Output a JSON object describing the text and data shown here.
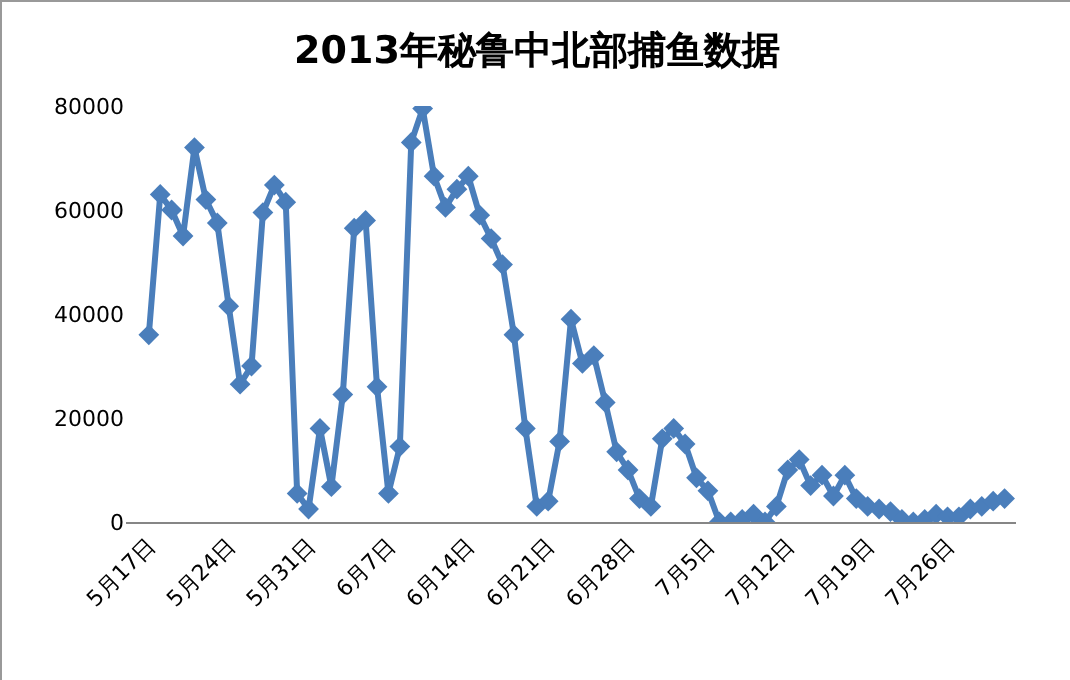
{
  "chart_data": {
    "type": "line",
    "title": "2013年秘鲁中北部捕鱼数据",
    "x": [
      "--05-17",
      "--05-18",
      "--05-19",
      "--05-20",
      "--05-21",
      "--05-22",
      "--05-23",
      "--05-24",
      "--05-25",
      "--05-26",
      "--05-27",
      "--05-28",
      "--05-29",
      "--05-30",
      "--05-31",
      "--06-01",
      "--06-02",
      "--06-03",
      "--06-04",
      "--06-05",
      "--06-06",
      "--06-07",
      "--06-08",
      "--06-09",
      "--06-10",
      "--06-11",
      "--06-12",
      "--06-13",
      "--06-14",
      "--06-15",
      "--06-16",
      "--06-17",
      "--06-18",
      "--06-19",
      "--06-20",
      "--06-21",
      "--06-22",
      "--06-23",
      "--06-24",
      "--06-25",
      "--06-26",
      "--06-27",
      "--06-28",
      "--06-29",
      "--06-30",
      "--07-01",
      "--07-02",
      "--07-03",
      "--07-04",
      "--07-05",
      "--07-06",
      "--07-07",
      "--07-08",
      "--07-09",
      "--07-10",
      "--07-11",
      "--07-12",
      "--07-13",
      "--07-14",
      "--07-15",
      "--07-16",
      "--07-17",
      "--07-18",
      "--07-19",
      "--07-20",
      "--07-21",
      "--07-22",
      "--07-23",
      "--07-24",
      "--07-25",
      "--07-26",
      "--07-27",
      "--07-28",
      "--07-29",
      "--07-30",
      "--07-31"
    ],
    "series": [
      {
        "color": "#4a7ebb",
        "values": [
          36000,
          63000,
          60000,
          55000,
          72000,
          62000,
          57500,
          41500,
          26500,
          30000,
          59500,
          64800,
          61500,
          5500,
          2500,
          18000,
          6800,
          24500,
          56500,
          58000,
          26000,
          5500,
          14500,
          73000,
          79500,
          66500,
          60500,
          64000,
          66500,
          59000,
          54500,
          49500,
          36000,
          18000,
          3000,
          4000,
          15500,
          39000,
          30500,
          32000,
          23000,
          13500,
          10000,
          4500,
          3000,
          16000,
          18000,
          15000,
          8500,
          6000,
          0,
          0,
          500,
          1500,
          0,
          3000,
          10000,
          12000,
          7000,
          9000,
          5000,
          9000,
          4500,
          3000,
          2500,
          2000,
          500,
          0,
          500,
          1500,
          1000,
          1000,
          2500,
          3000,
          4000,
          4500
        ]
      }
    ],
    "xlim": [
      "--05-15",
      "--08-01"
    ],
    "xticks": [
      {
        "value": "--05-17",
        "label": "5月17日"
      },
      {
        "value": "--05-24",
        "label": "5月24日"
      },
      {
        "value": "--05-31",
        "label": "5月31日"
      },
      {
        "value": "--06-07",
        "label": "6月7日"
      },
      {
        "value": "--06-14",
        "label": "6月14日"
      },
      {
        "value": "--06-21",
        "label": "6月21日"
      },
      {
        "value": "--06-28",
        "label": "6月28日"
      },
      {
        "value": "--07-05",
        "label": "7月5日"
      },
      {
        "value": "--07-12",
        "label": "7月12日"
      },
      {
        "value": "--07-19",
        "label": "7月19日"
      },
      {
        "value": "--07-26",
        "label": "7月26日"
      }
    ],
    "ylim": [
      0,
      80000
    ],
    "yticks": [
      0,
      20000,
      40000,
      60000,
      80000
    ],
    "marker": "diamond",
    "line_style": "solid"
  }
}
